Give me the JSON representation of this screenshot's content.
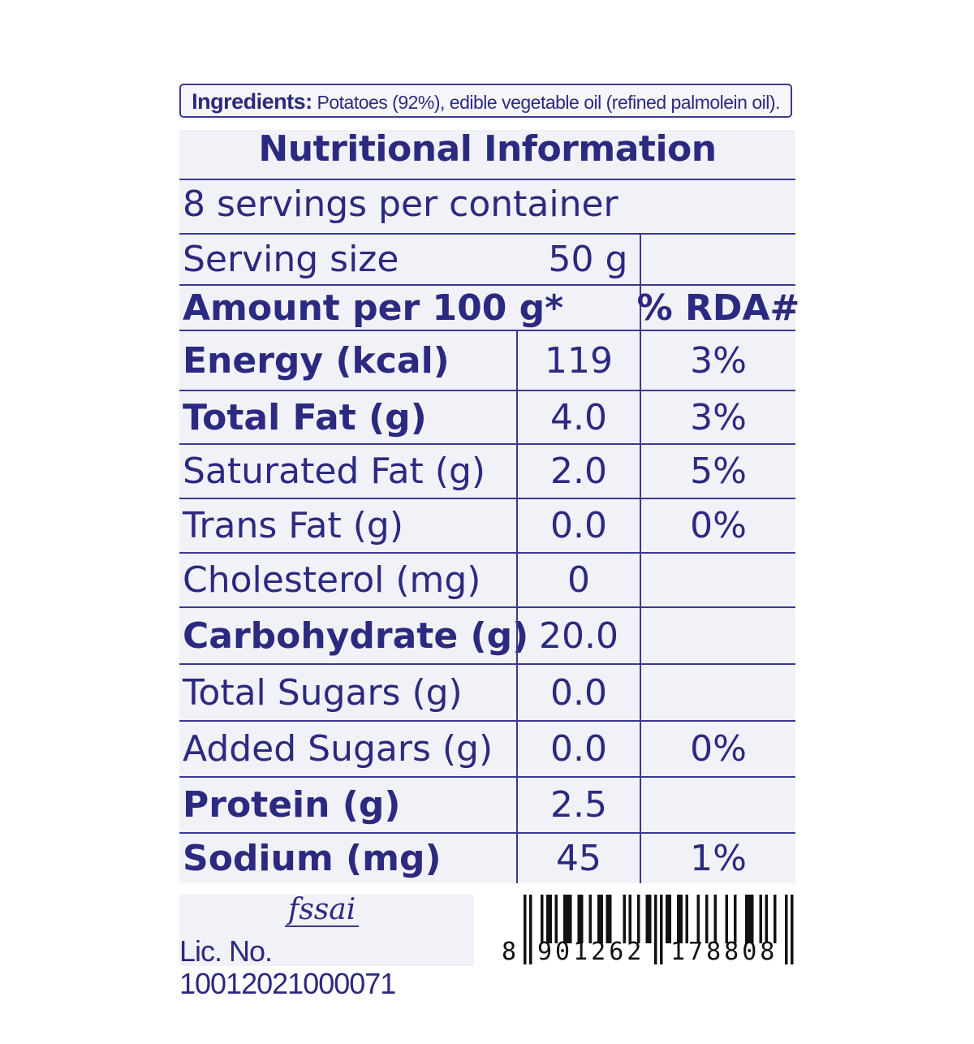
{
  "ingredients": {
    "label": "Ingredients:",
    "text": " Potatoes (92%), edible vegetable oil (refined palmolein oil)."
  },
  "title": "Nutritional Information",
  "servings_per_container": "8 servings per container",
  "serving_size": {
    "label": "Serving size",
    "value": "50 g"
  },
  "header": {
    "amount": "Amount per 100 g*",
    "rda": "% RDA#"
  },
  "rows": [
    {
      "name": "Energy (kcal)",
      "value": "119",
      "rda": "3%",
      "bold": true
    },
    {
      "name": "Total Fat (g)",
      "value": "4.0",
      "rda": "3%",
      "bold": true
    },
    {
      "name": "Saturated Fat (g)",
      "value": "2.0",
      "rda": "5%",
      "bold": false
    },
    {
      "name": "Trans Fat (g)",
      "value": "0.0",
      "rda": "0%",
      "bold": false
    },
    {
      "name": "Cholesterol (mg)",
      "value": "0",
      "rda": "",
      "bold": false
    },
    {
      "name": "Carbohydrate (g)",
      "value": "20.0",
      "rda": "",
      "bold": true
    },
    {
      "name": "Total Sugars (g)",
      "value": "0.0",
      "rda": "",
      "bold": false
    },
    {
      "name": "Added Sugars (g)",
      "value": "0.0",
      "rda": "0%",
      "bold": false
    },
    {
      "name": "Protein (g)",
      "value": "2.5",
      "rda": "",
      "bold": true
    },
    {
      "name": "Sodium (mg)",
      "value": "45",
      "rda": "1%",
      "bold": true
    }
  ],
  "footer": {
    "logo": "fssai",
    "license": "Lic. No. 10012021000071",
    "barcode": {
      "code": "8901262178808",
      "first": "8",
      "left": "901262",
      "right": "178808"
    }
  },
  "colors": {
    "text": "#2b2a80",
    "background": "#f1f1f8",
    "rule": "#3a3990"
  }
}
